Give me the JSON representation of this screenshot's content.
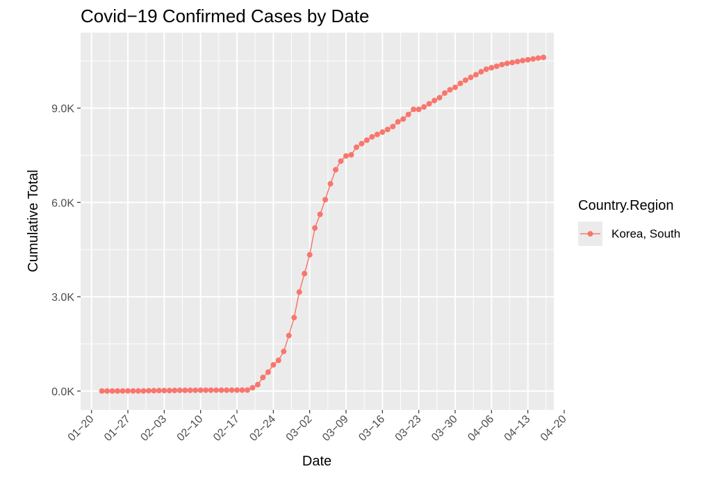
{
  "chart_data": {
    "type": "line",
    "title": "Covid−19 Confirmed Cases by Date",
    "xlabel": "Date",
    "ylabel": "Cumulative Total",
    "x_tick_labels": [
      "01−20",
      "01−27",
      "02−03",
      "02−10",
      "02−17",
      "02−24",
      "03−02",
      "03−09",
      "03−16",
      "03−23",
      "03−30",
      "04−06",
      "04−13",
      "04−20"
    ],
    "y_tick_labels": [
      "0.0K",
      "3.0K",
      "6.0K",
      "9.0K"
    ],
    "y_ticks": [
      0,
      3000,
      6000,
      9000
    ],
    "ylim": [
      -600,
      11400
    ],
    "xlim_days_from_jan22": [
      -4.1,
      87.0
    ],
    "legend": {
      "title": "Country.Region",
      "position": "right"
    },
    "grid": true,
    "series": [
      {
        "name": "Korea, South",
        "color": "#F8766D",
        "start_date": "2020-01-22",
        "values": [
          1,
          1,
          2,
          2,
          3,
          4,
          4,
          4,
          4,
          11,
          12,
          15,
          15,
          16,
          19,
          23,
          24,
          24,
          25,
          27,
          28,
          28,
          28,
          28,
          28,
          29,
          30,
          31,
          31,
          104,
          204,
          433,
          602,
          833,
          977,
          1261,
          1766,
          2337,
          3150,
          3736,
          4335,
          5186,
          5621,
          6088,
          6593,
          7041,
          7314,
          7478,
          7513,
          7755,
          7869,
          7979,
          8086,
          8162,
          8236,
          8320,
          8413,
          8565,
          8652,
          8799,
          8961,
          8961,
          9037,
          9137,
          9241,
          9332,
          9478,
          9583,
          9661,
          9786,
          9887,
          9976,
          10062,
          10156,
          10237,
          10284,
          10331,
          10384,
          10423,
          10450,
          10480,
          10512,
          10537,
          10564,
          10591,
          10613
        ]
      }
    ]
  }
}
